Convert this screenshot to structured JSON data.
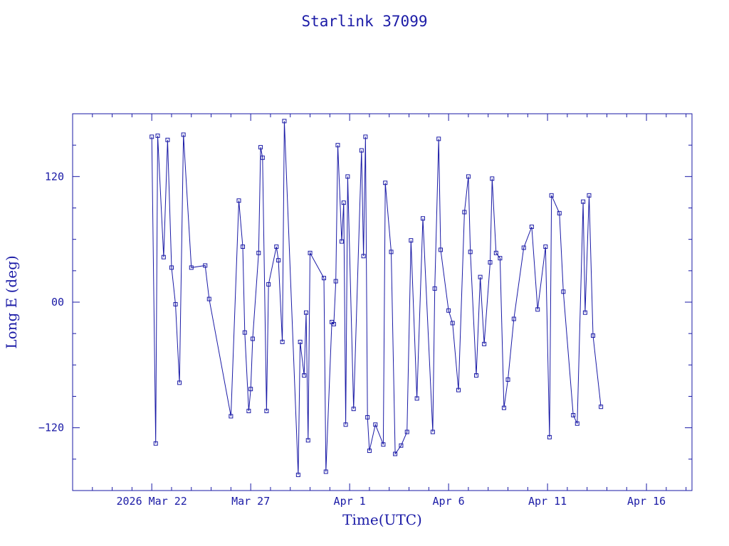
{
  "chart_data": {
    "type": "line",
    "title": "Starlink 37099",
    "xlabel": "Time(UTC)",
    "ylabel": "Long E (deg)",
    "x_unit": "days of March 2026",
    "xlim": [
      18.0,
      49.3
    ],
    "ylim": [
      -180,
      180
    ],
    "x_ticks": [
      {
        "x": 22,
        "label": "2026 Mar 22"
      },
      {
        "x": 27,
        "label": "Mar 27"
      },
      {
        "x": 32,
        "label": "Apr  1"
      },
      {
        "x": 37,
        "label": "Apr  6"
      },
      {
        "x": 42,
        "label": "Apr 11"
      },
      {
        "x": 47,
        "label": "Apr 16"
      }
    ],
    "y_ticks": [
      {
        "y": 120,
        "label": "120"
      },
      {
        "y": 0,
        "label": "00"
      },
      {
        "y": -120,
        "label": "−120"
      }
    ],
    "colors": {
      "line": "#1a1aa6",
      "marker": "#1a1aa6",
      "frame": "#1a1aa6",
      "background": "#ffffff"
    },
    "series": [
      {
        "x": [
          22.0,
          22.2,
          22.3,
          22.6,
          22.8,
          23.0,
          23.2,
          23.4,
          23.6,
          24.0,
          24.7,
          24.9,
          26.0,
          26.4,
          26.6,
          26.7,
          26.9,
          27.0,
          27.1,
          27.4,
          27.5,
          27.6,
          27.8,
          27.9,
          28.3,
          28.4,
          28.6,
          28.7,
          29.4,
          29.5,
          29.7,
          29.8,
          29.9,
          30.0,
          30.7,
          30.8,
          31.1,
          31.2,
          31.3,
          31.4,
          31.6,
          31.7,
          31.8,
          31.9,
          32.2,
          32.6,
          32.7,
          32.8,
          32.9,
          33.0,
          33.3,
          33.7,
          33.8,
          34.1,
          34.3,
          34.6,
          34.9,
          35.1,
          35.4,
          35.7,
          36.2,
          36.3,
          36.5,
          36.6,
          37.0,
          37.2,
          37.5,
          37.8,
          38.0,
          38.1,
          38.4,
          38.6,
          38.8,
          39.1,
          39.2,
          39.4,
          39.6,
          39.8,
          40.0,
          40.3,
          40.8,
          41.2,
          41.5,
          41.9,
          42.1,
          42.2,
          42.6,
          42.8,
          43.3,
          43.5,
          43.8,
          43.9,
          44.1,
          44.3,
          44.7
        ],
        "y": [
          158,
          -135,
          159,
          43,
          155,
          33,
          -2,
          -77,
          160,
          33,
          35,
          3,
          -109,
          97,
          53,
          -29,
          -104,
          -83,
          -35,
          47,
          148,
          138,
          -104,
          17,
          53,
          40,
          -38,
          173,
          -165,
          -38,
          -70,
          -10,
          -132,
          47,
          23,
          -162,
          -19,
          -21,
          20,
          150,
          58,
          95,
          -117,
          120,
          -102,
          145,
          44,
          158,
          -110,
          -142,
          -117,
          -136,
          114,
          48,
          -145,
          -137,
          -124,
          59,
          -92,
          80,
          -124,
          13,
          156,
          50,
          -8,
          -20,
          -84,
          86,
          120,
          48,
          -70,
          24,
          -40,
          38,
          118,
          47,
          42,
          -101,
          -74,
          -16,
          52,
          72,
          -7,
          53,
          -129,
          102,
          85,
          10,
          -108,
          -116,
          96,
          -10,
          102,
          -32,
          -100
        ]
      }
    ]
  }
}
